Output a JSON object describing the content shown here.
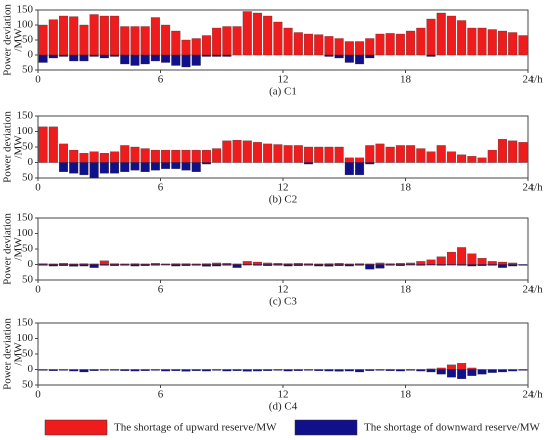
{
  "chart_data": [
    {
      "type": "bar",
      "caption": "(a) C1",
      "xlabel": "t/h",
      "ylabel": [
        "Power deviation",
        "/MW"
      ],
      "x": [
        0.25,
        0.75,
        1.25,
        1.75,
        2.25,
        2.75,
        3.25,
        3.75,
        4.25,
        4.75,
        5.25,
        5.75,
        6.25,
        6.75,
        7.25,
        7.75,
        8.25,
        8.75,
        9.25,
        9.75,
        10.25,
        10.75,
        11.25,
        11.75,
        12.25,
        12.75,
        13.25,
        13.75,
        14.25,
        14.75,
        15.25,
        15.75,
        16.25,
        16.75,
        17.25,
        17.75,
        18.25,
        18.75,
        19.25,
        19.75,
        20.25,
        20.75,
        21.25,
        21.75,
        22.25,
        22.75,
        23.25,
        23.75
      ],
      "xlim": [
        0,
        24
      ],
      "xticks": [
        0,
        6,
        12,
        18,
        24
      ],
      "ylim": [
        -50,
        150
      ],
      "yticks": [
        {
          "value": -50,
          "label": "50"
        },
        0,
        50,
        100,
        150
      ],
      "series": [
        {
          "name": "The shortage of upward reserve/MW",
          "color": "#ee1c1c",
          "values": [
            100,
            118,
            130,
            128,
            100,
            135,
            130,
            130,
            95,
            95,
            95,
            125,
            100,
            80,
            50,
            55,
            65,
            90,
            95,
            95,
            145,
            140,
            130,
            110,
            90,
            75,
            70,
            68,
            62,
            55,
            45,
            45,
            55,
            70,
            72,
            70,
            80,
            90,
            120,
            140,
            130,
            115,
            90,
            90,
            85,
            80,
            75,
            65
          ]
        },
        {
          "name": "The shortage of downward reserve/MW",
          "color": "#10108a",
          "values": [
            -25,
            -10,
            -5,
            -20,
            -20,
            -5,
            -10,
            -5,
            -30,
            -35,
            -30,
            -20,
            -25,
            -35,
            -40,
            -35,
            -5,
            -5,
            -5,
            0,
            0,
            0,
            0,
            0,
            0,
            0,
            0,
            0,
            -5,
            -10,
            -25,
            -30,
            -10,
            0,
            0,
            0,
            0,
            0,
            -5,
            0,
            0,
            0,
            0,
            0,
            0,
            0,
            0,
            0
          ]
        }
      ]
    },
    {
      "type": "bar",
      "caption": "(b) C2",
      "xlabel": "t/h",
      "ylabel": [
        "Power deviation",
        "/MW"
      ],
      "x": [
        0.25,
        0.75,
        1.25,
        1.75,
        2.25,
        2.75,
        3.25,
        3.75,
        4.25,
        4.75,
        5.25,
        5.75,
        6.25,
        6.75,
        7.25,
        7.75,
        8.25,
        8.75,
        9.25,
        9.75,
        10.25,
        10.75,
        11.25,
        11.75,
        12.25,
        12.75,
        13.25,
        13.75,
        14.25,
        14.75,
        15.25,
        15.75,
        16.25,
        16.75,
        17.25,
        17.75,
        18.25,
        18.75,
        19.25,
        19.75,
        20.25,
        20.75,
        21.25,
        21.75,
        22.25,
        22.75,
        23.25,
        23.75
      ],
      "xlim": [
        0,
        24
      ],
      "xticks": [
        0,
        6,
        12,
        18,
        24
      ],
      "ylim": [
        -50,
        150
      ],
      "yticks": [
        {
          "value": -50,
          "label": "50"
        },
        0,
        50,
        100,
        150
      ],
      "series": [
        {
          "color": "#ee1c1c",
          "values": [
            115,
            115,
            60,
            40,
            30,
            35,
            30,
            35,
            55,
            50,
            45,
            40,
            40,
            40,
            40,
            40,
            40,
            45,
            70,
            72,
            70,
            65,
            60,
            58,
            55,
            55,
            50,
            50,
            50,
            50,
            15,
            15,
            55,
            60,
            50,
            55,
            55,
            45,
            35,
            55,
            35,
            25,
            20,
            15,
            40,
            75,
            70,
            65
          ]
        },
        {
          "color": "#10108a",
          "values": [
            0,
            0,
            -30,
            -35,
            -40,
            -50,
            -35,
            -35,
            -30,
            -25,
            -30,
            -25,
            -20,
            -20,
            -25,
            -30,
            -5,
            0,
            0,
            0,
            0,
            0,
            0,
            0,
            0,
            0,
            -5,
            0,
            0,
            0,
            -40,
            -40,
            -5,
            0,
            0,
            0,
            0,
            0,
            0,
            0,
            0,
            0,
            0,
            0,
            0,
            0,
            0,
            0
          ]
        }
      ]
    },
    {
      "type": "bar",
      "caption": "(c) C3",
      "xlabel": "t/h",
      "ylabel": [
        "Power deviation",
        "/MW"
      ],
      "x": [
        0.25,
        0.75,
        1.25,
        1.75,
        2.25,
        2.75,
        3.25,
        3.75,
        4.25,
        4.75,
        5.25,
        5.75,
        6.25,
        6.75,
        7.25,
        7.75,
        8.25,
        8.75,
        9.25,
        9.75,
        10.25,
        10.75,
        11.25,
        11.75,
        12.25,
        12.75,
        13.25,
        13.75,
        14.25,
        14.75,
        15.25,
        15.75,
        16.25,
        16.75,
        17.25,
        17.75,
        18.25,
        18.75,
        19.25,
        19.75,
        20.25,
        20.75,
        21.25,
        21.75,
        22.25,
        22.75,
        23.25,
        23.75
      ],
      "xlim": [
        0,
        24
      ],
      "xticks": [
        0,
        6,
        12,
        18,
        24
      ],
      "ylim": [
        -50,
        150
      ],
      "yticks": [
        {
          "value": -50,
          "label": "50"
        },
        0,
        50,
        100,
        150
      ],
      "series": [
        {
          "color": "#ee1c1c",
          "values": [
            3,
            2,
            4,
            2,
            3,
            2,
            12,
            3,
            2,
            3,
            2,
            4,
            2,
            3,
            3,
            2,
            3,
            5,
            4,
            2,
            10,
            8,
            5,
            4,
            3,
            4,
            3,
            2,
            3,
            4,
            2,
            3,
            2,
            5,
            3,
            4,
            5,
            10,
            15,
            25,
            40,
            55,
            35,
            20,
            10,
            8,
            5,
            0
          ]
        },
        {
          "color": "#10108a",
          "values": [
            -3,
            -5,
            -4,
            -6,
            -5,
            -10,
            -3,
            -4,
            -3,
            -5,
            -4,
            -3,
            -2,
            -5,
            -4,
            -3,
            -6,
            -5,
            -3,
            -10,
            -2,
            -3,
            -4,
            -3,
            -5,
            -4,
            -3,
            -5,
            -6,
            -4,
            -5,
            -3,
            -15,
            -12,
            -3,
            -4,
            -2,
            -3,
            -2,
            -3,
            -2,
            -3,
            -5,
            -4,
            -3,
            -10,
            -5,
            -3
          ]
        }
      ]
    },
    {
      "type": "bar",
      "caption": "(d) C4",
      "xlabel": "t/h",
      "ylabel": [
        "Power deviation",
        "/MW"
      ],
      "x": [
        0.25,
        0.75,
        1.25,
        1.75,
        2.25,
        2.75,
        3.25,
        3.75,
        4.25,
        4.75,
        5.25,
        5.75,
        6.25,
        6.75,
        7.25,
        7.75,
        8.25,
        8.75,
        9.25,
        9.75,
        10.25,
        10.75,
        11.25,
        11.75,
        12.25,
        12.75,
        13.25,
        13.75,
        14.25,
        14.75,
        15.25,
        15.75,
        16.25,
        16.75,
        17.25,
        17.75,
        18.25,
        18.75,
        19.25,
        19.75,
        20.25,
        20.75,
        21.25,
        21.75,
        22.25,
        22.75,
        23.25,
        23.75
      ],
      "xlim": [
        0,
        24
      ],
      "xticks": [
        0,
        6,
        12,
        18,
        24
      ],
      "ylim": [
        -50,
        150
      ],
      "yticks": [
        {
          "value": -50,
          "label": "50"
        },
        0,
        50,
        100,
        150
      ],
      "series": [
        {
          "color": "#ee1c1c",
          "values": [
            0,
            0,
            0,
            0,
            0,
            0,
            0,
            0,
            0,
            0,
            0,
            0,
            0,
            0,
            0,
            0,
            0,
            0,
            0,
            0,
            0,
            0,
            0,
            0,
            0,
            0,
            0,
            0,
            0,
            0,
            0,
            0,
            0,
            0,
            0,
            0,
            0,
            0,
            2,
            5,
            15,
            20,
            5,
            0,
            0,
            0,
            0,
            0
          ]
        },
        {
          "color": "#10108a",
          "values": [
            -3,
            -4,
            -3,
            -5,
            -8,
            -4,
            -3,
            -3,
            -4,
            -5,
            -4,
            -3,
            -5,
            -4,
            -6,
            -4,
            -5,
            -3,
            -5,
            -4,
            -6,
            -5,
            -4,
            -3,
            -5,
            -4,
            -3,
            -4,
            -5,
            -6,
            -5,
            -8,
            -4,
            -3,
            -4,
            -5,
            -3,
            -5,
            -8,
            -15,
            -25,
            -30,
            -20,
            -15,
            -10,
            -8,
            -5,
            -3
          ]
        }
      ]
    }
  ]
}
